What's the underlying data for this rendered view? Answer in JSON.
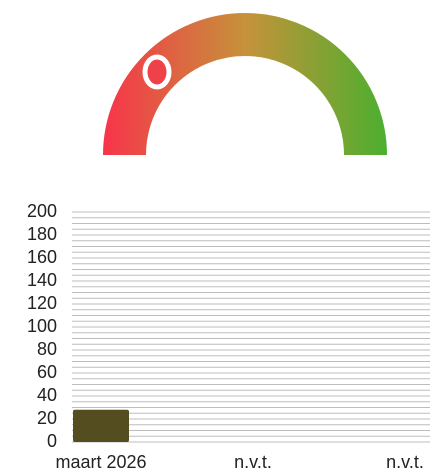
{
  "chart_data": {
    "type": "bar",
    "categories": [
      "maart 2026",
      "n.v.t.",
      "n.v.t."
    ],
    "values": [
      28,
      null,
      null
    ],
    "color": "#534d1f",
    "ylim": [
      0,
      200
    ],
    "yticks": [
      0,
      20,
      40,
      60,
      80,
      100,
      120,
      140,
      160,
      180,
      200
    ],
    "grid": true
  }
}
